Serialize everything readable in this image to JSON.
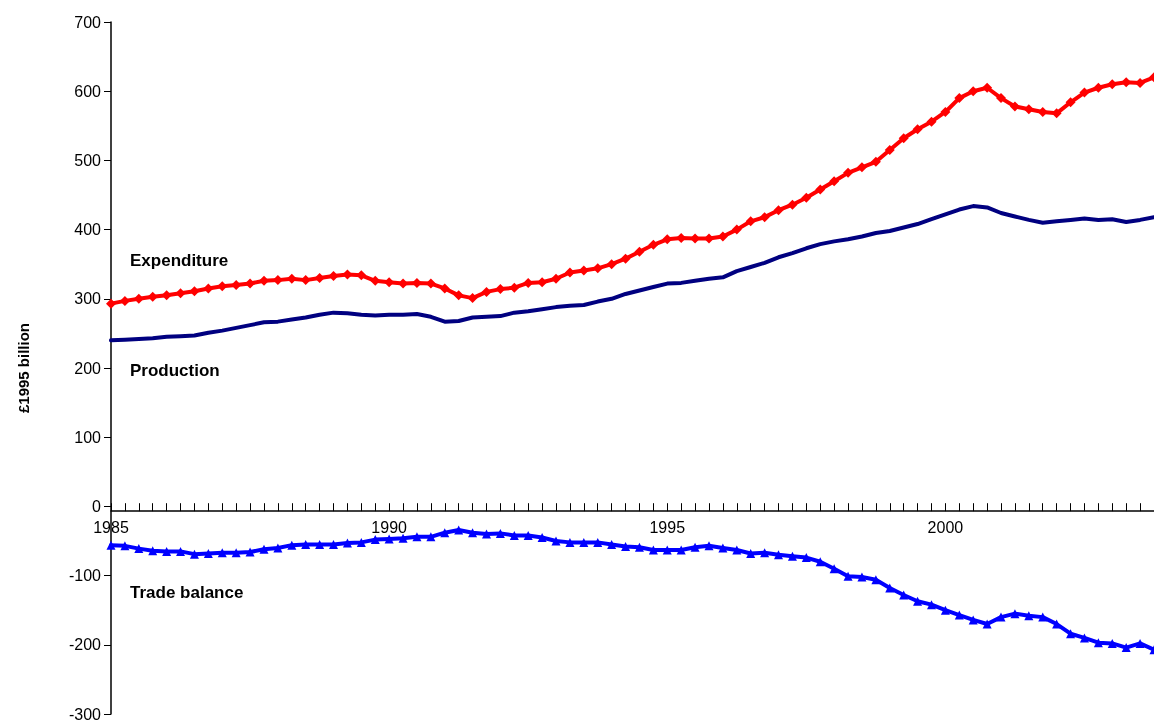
{
  "chart_data": {
    "type": "line",
    "ylabel": "£1995 billion",
    "xlim": [
      1985,
      2003.75
    ],
    "xticks": [
      1985,
      1990,
      1995,
      2000
    ],
    "ylim": [
      -300,
      700
    ],
    "yticks": [
      -300,
      -200,
      -100,
      0,
      100,
      200,
      300,
      400,
      500,
      600,
      700
    ],
    "grid": false,
    "legend": false,
    "line_style": "solid",
    "x": [
      1985,
      1985.25,
      1985.5,
      1985.75,
      1986,
      1986.25,
      1986.5,
      1986.75,
      1987,
      1987.25,
      1987.5,
      1987.75,
      1988,
      1988.25,
      1988.5,
      1988.75,
      1989,
      1989.25,
      1989.5,
      1989.75,
      1990,
      1990.25,
      1990.5,
      1990.75,
      1991,
      1991.25,
      1991.5,
      1991.75,
      1992,
      1992.25,
      1992.5,
      1992.75,
      1993,
      1993.25,
      1993.5,
      1993.75,
      1994,
      1994.25,
      1994.5,
      1994.75,
      1995,
      1995.25,
      1995.5,
      1995.75,
      1996,
      1996.25,
      1996.5,
      1996.75,
      1997,
      1997.25,
      1997.5,
      1997.75,
      1998,
      1998.25,
      1998.5,
      1998.75,
      1999,
      1999.25,
      1999.5,
      1999.75,
      2000,
      2000.25,
      2000.5,
      2000.75,
      2001,
      2001.25,
      2001.5,
      2001.75,
      2002,
      2002.25,
      2002.5,
      2002.75,
      2003,
      2003.25,
      2003.5,
      2003.75
    ],
    "series": [
      {
        "name": "Expenditure",
        "color": "#ff0000",
        "marker": "diamond",
        "values": [
          293,
          297,
          300,
          303,
          305,
          308,
          311,
          315,
          318,
          320,
          322,
          326,
          327,
          329,
          327,
          330,
          333,
          335,
          334,
          326,
          324,
          322,
          323,
          322,
          315,
          305,
          301,
          310,
          314,
          316,
          323,
          324,
          329,
          338,
          341,
          344,
          350,
          358,
          368,
          378,
          386,
          388,
          387,
          387,
          390,
          400,
          412,
          418,
          428,
          436,
          446,
          458,
          470,
          482,
          490,
          498,
          515,
          532,
          545,
          556,
          570,
          590,
          600,
          605,
          590,
          578,
          574,
          570,
          568,
          584,
          598,
          605,
          610,
          613,
          612,
          620
        ]
      },
      {
        "name": "Production",
        "color": "#000080",
        "marker": "none",
        "values": [
          240,
          241,
          242,
          243,
          245,
          246,
          247,
          251,
          254,
          258,
          262,
          266,
          267,
          270,
          273,
          277,
          280,
          279,
          277,
          276,
          277,
          277,
          278,
          274,
          267,
          268,
          273,
          274,
          275,
          280,
          282,
          285,
          288,
          290,
          291,
          296,
          300,
          307,
          312,
          317,
          322,
          323,
          326,
          329,
          331,
          340,
          346,
          352,
          360,
          366,
          373,
          379,
          383,
          386,
          390,
          395,
          398,
          403,
          408,
          415,
          422,
          429,
          434,
          432,
          424,
          419,
          414,
          410,
          412,
          414,
          416,
          414,
          415,
          411,
          414,
          418
        ]
      },
      {
        "name": "Trade balance",
        "color": "#0000ff",
        "marker": "triangle",
        "values": [
          -56,
          -57,
          -61,
          -64,
          -65,
          -65,
          -69,
          -68,
          -67,
          -67,
          -66,
          -62,
          -60,
          -56,
          -55,
          -55,
          -55,
          -53,
          -52,
          -48,
          -47,
          -46,
          -44,
          -44,
          -38,
          -34,
          -38,
          -40,
          -39,
          -42,
          -42,
          -45,
          -50,
          -52,
          -52,
          -52,
          -55,
          -58,
          -59,
          -63,
          -63,
          -63,
          -59,
          -57,
          -60,
          -63,
          -68,
          -67,
          -70,
          -72,
          -74,
          -80,
          -90,
          -101,
          -102,
          -106,
          -118,
          -128,
          -137,
          -142,
          -150,
          -157,
          -164,
          -170,
          -160,
          -155,
          -158,
          -160,
          -170,
          -184,
          -190,
          -197,
          -198,
          -204,
          -198,
          -207
        ]
      }
    ]
  }
}
